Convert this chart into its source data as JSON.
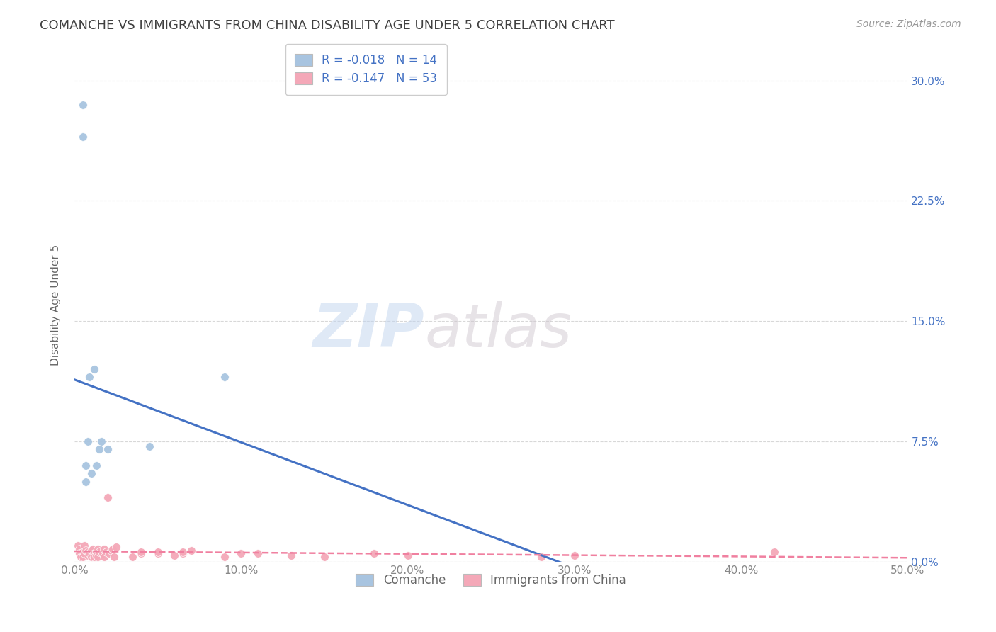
{
  "title": "COMANCHE VS IMMIGRANTS FROM CHINA DISABILITY AGE UNDER 5 CORRELATION CHART",
  "source": "Source: ZipAtlas.com",
  "ylabel": "Disability Age Under 5",
  "xlim": [
    0.0,
    0.5
  ],
  "ylim": [
    0.0,
    0.32
  ],
  "yticks": [
    0.0,
    0.075,
    0.15,
    0.225,
    0.3
  ],
  "ytick_labels": [
    "0.0%",
    "7.5%",
    "15.0%",
    "22.5%",
    "30.0%"
  ],
  "xticks": [
    0.0,
    0.1,
    0.2,
    0.3,
    0.4,
    0.5
  ],
  "xtick_labels": [
    "0.0%",
    "10.0%",
    "20.0%",
    "30.0%",
    "40.0%",
    "50.0%"
  ],
  "comanche_x": [
    0.005,
    0.005,
    0.007,
    0.007,
    0.008,
    0.009,
    0.01,
    0.012,
    0.013,
    0.015,
    0.016,
    0.02,
    0.045,
    0.09
  ],
  "comanche_y": [
    0.285,
    0.265,
    0.06,
    0.05,
    0.075,
    0.115,
    0.055,
    0.12,
    0.06,
    0.07,
    0.075,
    0.07,
    0.072,
    0.115
  ],
  "china_x": [
    0.002,
    0.003,
    0.003,
    0.004,
    0.005,
    0.005,
    0.006,
    0.006,
    0.007,
    0.008,
    0.008,
    0.009,
    0.01,
    0.01,
    0.011,
    0.011,
    0.012,
    0.012,
    0.013,
    0.013,
    0.014,
    0.014,
    0.015,
    0.016,
    0.017,
    0.018,
    0.018,
    0.019,
    0.02,
    0.021,
    0.022,
    0.023,
    0.024,
    0.025,
    0.035,
    0.04,
    0.04,
    0.05,
    0.05,
    0.06,
    0.065,
    0.065,
    0.07,
    0.09,
    0.1,
    0.11,
    0.13,
    0.15,
    0.18,
    0.2,
    0.28,
    0.3,
    0.42
  ],
  "china_y": [
    0.01,
    0.008,
    0.005,
    0.003,
    0.006,
    0.003,
    0.01,
    0.005,
    0.007,
    0.004,
    0.006,
    0.005,
    0.007,
    0.003,
    0.008,
    0.004,
    0.005,
    0.003,
    0.006,
    0.004,
    0.008,
    0.003,
    0.006,
    0.007,
    0.005,
    0.008,
    0.003,
    0.006,
    0.04,
    0.005,
    0.007,
    0.008,
    0.003,
    0.009,
    0.003,
    0.005,
    0.006,
    0.005,
    0.006,
    0.004,
    0.005,
    0.006,
    0.007,
    0.003,
    0.005,
    0.005,
    0.004,
    0.003,
    0.005,
    0.004,
    0.003,
    0.004,
    0.006
  ],
  "comanche_color": "#a8c4e0",
  "china_color": "#f4a8b8",
  "comanche_line_color": "#4472c4",
  "china_line_color": "#f080a0",
  "legend_label_1": "R = -0.018   N = 14",
  "legend_label_2": "R = -0.147   N = 53",
  "watermark_zip": "ZIP",
  "watermark_atlas": "atlas",
  "background_color": "#ffffff",
  "grid_color": "#d8d8d8",
  "title_color": "#404040",
  "axis_label_color": "#4472c4",
  "tick_color_x": "#888888",
  "dot_size": 70
}
